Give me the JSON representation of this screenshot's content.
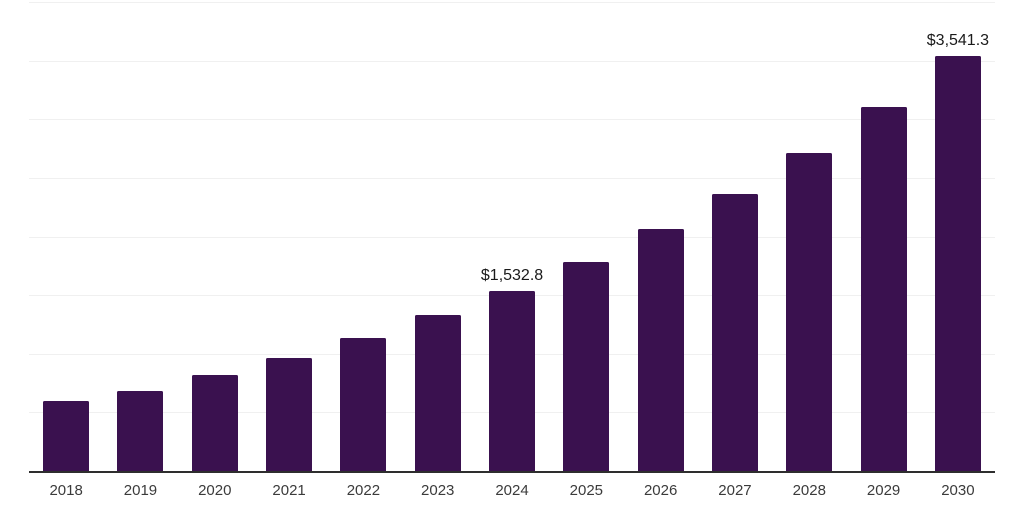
{
  "chart_data": {
    "type": "bar",
    "title": "",
    "xlabel": "",
    "ylabel": "",
    "categories": [
      "2018",
      "2019",
      "2020",
      "2021",
      "2022",
      "2023",
      "2024",
      "2025",
      "2026",
      "2027",
      "2028",
      "2029",
      "2030"
    ],
    "values": [
      596,
      681,
      818,
      966,
      1133,
      1329,
      1532.8,
      1780,
      2065,
      2363,
      2715,
      3106,
      3541.3
    ],
    "data_labels": [
      "",
      "",
      "",
      "",
      "",
      "",
      "$1,532.8",
      "",
      "",
      "",
      "",
      "",
      "$3,541.3"
    ],
    "ylim": [
      0,
      4000
    ],
    "gridline_step": 500,
    "grid": true,
    "legend": false,
    "colors": {
      "bar": "#3a114f",
      "gridline": "#f0f0f0",
      "axis_line": "#2e2e2e",
      "tick_label": "#3b3b3b",
      "data_label": "#1a1a1a",
      "background": "#ffffff"
    }
  }
}
